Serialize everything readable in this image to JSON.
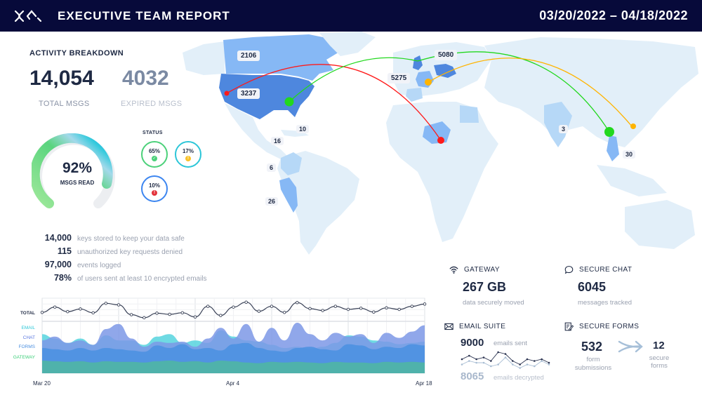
{
  "header": {
    "title": "EXECUTIVE TEAM REPORT",
    "date_range": "03/20/2022 – 04/18/2022",
    "logo_icon": "x-chevrons-logo-icon"
  },
  "activity": {
    "title": "ACTIVITY BREAKDOWN",
    "total_msgs": "14,054",
    "total_msgs_label": "TOTAL MSGS",
    "expired_msgs": "4032",
    "expired_msgs_label": "EXPIRED MSGS",
    "gauge": {
      "value": "92%",
      "label": "MSGS READ",
      "percent": 92
    },
    "status": {
      "title": "STATUS",
      "items": [
        {
          "pct": "65%",
          "ring_color": "#4cd17a",
          "dot_color": "#4cd17a",
          "icon": "check-icon",
          "glyph": "✓"
        },
        {
          "pct": "17%",
          "ring_color": "#2cc6d8",
          "dot_color": "#f8c22a",
          "icon": "warning-icon",
          "glyph": "!"
        },
        {
          "pct": "10%",
          "ring_color": "#3d86f0",
          "dot_color": "#e3323b",
          "icon": "error-icon",
          "glyph": "!"
        }
      ]
    }
  },
  "facts": [
    {
      "num": "14,000",
      "text": "keys stored to keep your data safe"
    },
    {
      "num": "115",
      "text": "unauthorized key requests denied"
    },
    {
      "num": "97,000",
      "text": "events logged"
    },
    {
      "num": "78%",
      "text": "of users sent at least 10 encrypted emails"
    }
  ],
  "map": {
    "labels": [
      {
        "value": "2106",
        "region": "Canada"
      },
      {
        "value": "3237",
        "region": "United States"
      },
      {
        "value": "5275",
        "region": "France"
      },
      {
        "value": "5080",
        "region": "Germany"
      },
      {
        "value": "10",
        "region": "Caribbean"
      },
      {
        "value": "16",
        "region": "Central America"
      },
      {
        "value": "6",
        "region": "Colombia"
      },
      {
        "value": "26",
        "region": "Peru"
      },
      {
        "value": "3",
        "region": "India"
      },
      {
        "value": "30",
        "region": "Vietnam"
      }
    ],
    "colors": {
      "base": "#e2eff9",
      "light": "#b6d8f7",
      "mid": "#86b8f5",
      "dark": "#4e87de",
      "red": "#ff1a1a",
      "green": "#22d81e",
      "orange": "#ffb400"
    }
  },
  "chart_data": {
    "type": "area",
    "title": "",
    "x_ticks": [
      "Mar 20",
      "Apr 4",
      "Apr 18"
    ],
    "total_label": "TOTAL",
    "legend": [
      {
        "name": "EMAIL",
        "color": "#2ec8d8"
      },
      {
        "name": "CHAT",
        "color": "#5a78e0"
      },
      {
        "name": "FORMS",
        "color": "#4a8fe0"
      },
      {
        "name": "GATEWAY",
        "color": "#3ecf7a"
      }
    ],
    "series": [
      {
        "name": "TOTAL",
        "values": [
          48,
          62,
          50,
          57,
          47,
          72,
          68,
          42,
          34,
          46,
          43,
          47,
          36,
          64,
          40,
          62,
          75,
          51,
          64,
          48,
          74,
          58,
          53,
          64,
          56,
          59,
          49,
          60,
          56,
          64,
          70
        ]
      },
      {
        "name": "EMAIL",
        "values": [
          62,
          55,
          48,
          55,
          45,
          60,
          52,
          52,
          45,
          58,
          62,
          48,
          52,
          48,
          68,
          58,
          52,
          50,
          45,
          40,
          42,
          38,
          42,
          48,
          60,
          58,
          52,
          50,
          46,
          48,
          50
        ]
      },
      {
        "name": "CHAT",
        "values": [
          52,
          58,
          48,
          52,
          45,
          70,
          78,
          55,
          42,
          50,
          48,
          50,
          42,
          55,
          72,
          55,
          78,
          50,
          72,
          52,
          80,
          62,
          52,
          64,
          58,
          62,
          48,
          64,
          56,
          66,
          76
        ]
      },
      {
        "name": "FORMS",
        "values": [
          40,
          38,
          36,
          40,
          36,
          40,
          38,
          36,
          34,
          44,
          40,
          46,
          38,
          40,
          36,
          46,
          48,
          40,
          36,
          34,
          40,
          42,
          38,
          36,
          46,
          44,
          38,
          42,
          40,
          46,
          44
        ]
      },
      {
        "name": "GATEWAY",
        "values": [
          20,
          19,
          18,
          19,
          17,
          19,
          18,
          18,
          17,
          19,
          20,
          18,
          19,
          17,
          20,
          19,
          17,
          16,
          18,
          17,
          18,
          17,
          16,
          18,
          17,
          17,
          16,
          18,
          17,
          18,
          17
        ]
      }
    ]
  },
  "widgets": {
    "gateway": {
      "title": "GATEWAY",
      "icon": "wifi-icon",
      "value": "267 GB",
      "sub": "data securely moved"
    },
    "chat": {
      "title": "SECURE CHAT",
      "icon": "chat-bubble-icon",
      "value": "6045",
      "sub": "messages tracked"
    },
    "email": {
      "title": "EMAIL SUITE",
      "icon": "envelope-icon",
      "sent_value": "9000",
      "sent_label": "emails sent",
      "decrypted_value": "8065",
      "decrypted_label": "emails decrypted",
      "sparkline_sent": [
        4,
        6,
        4,
        5,
        3,
        8,
        7,
        3,
        1,
        4,
        3,
        4,
        2
      ],
      "sparkline_decrypted": [
        1,
        3,
        2,
        2,
        0,
        1,
        5,
        1,
        -1,
        1,
        0,
        3,
        1
      ]
    },
    "forms": {
      "title": "SECURE FORMS",
      "icon": "forms-pencil-icon",
      "submissions_value": "532",
      "submissions_label": "form submissions",
      "secure_value": "12",
      "secure_label": "secure forms",
      "arrow_icon": "arrow-right-icon"
    }
  }
}
